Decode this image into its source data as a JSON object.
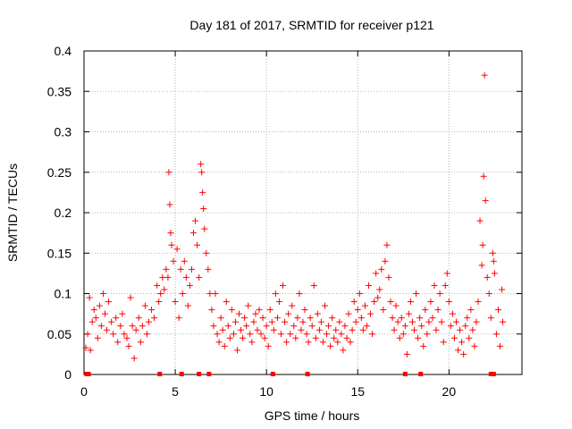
{
  "chart_data": {
    "type": "scatter",
    "title": "Day 181 of 2017, SRMTID for receiver p121",
    "xlabel": "GPS time / hours",
    "ylabel": "SRMTID / TECUs",
    "xlim": [
      0,
      24
    ],
    "ylim": [
      0,
      0.4
    ],
    "xticks": [
      0,
      5,
      10,
      15,
      20
    ],
    "xtick_labels": [
      "0",
      "5",
      "10",
      "15",
      "20"
    ],
    "yticks": [
      0,
      0.05,
      0.1,
      0.15,
      0.2,
      0.25,
      0.3,
      0.35,
      0.4
    ],
    "ytick_labels": [
      "0",
      "0.05",
      "0.1",
      "0.15",
      "0.2",
      "0.25",
      "0.3",
      "0.35",
      "0.4"
    ],
    "grid": true,
    "marker": "+",
    "color": "#ff0000",
    "series": [
      {
        "name": "SRMTID",
        "points": [
          [
            0.1,
            0.033
          ],
          [
            0.2,
            0.05
          ],
          [
            0.3,
            0.095
          ],
          [
            0.35,
            0.03
          ],
          [
            0.45,
            0.065
          ],
          [
            0.55,
            0.08
          ],
          [
            0.65,
            0.07
          ],
          [
            0.75,
            0.045
          ],
          [
            0.85,
            0.085
          ],
          [
            0.95,
            0.06
          ],
          [
            1.05,
            0.1
          ],
          [
            1.15,
            0.075
          ],
          [
            1.25,
            0.055
          ],
          [
            1.35,
            0.09
          ],
          [
            1.5,
            0.065
          ],
          [
            1.6,
            0.05
          ],
          [
            1.75,
            0.07
          ],
          [
            1.85,
            0.04
          ],
          [
            2.0,
            0.06
          ],
          [
            2.1,
            0.075
          ],
          [
            2.2,
            0.05
          ],
          [
            2.35,
            0.045
          ],
          [
            2.45,
            0.035
          ],
          [
            2.55,
            0.095
          ],
          [
            2.65,
            0.06
          ],
          [
            2.75,
            0.02
          ],
          [
            2.85,
            0.055
          ],
          [
            3.0,
            0.07
          ],
          [
            3.1,
            0.04
          ],
          [
            3.2,
            0.06
          ],
          [
            3.35,
            0.085
          ],
          [
            3.45,
            0.05
          ],
          [
            3.55,
            0.065
          ],
          [
            3.7,
            0.08
          ],
          [
            3.85,
            0.07
          ],
          [
            4.0,
            0.11
          ],
          [
            4.1,
            0.09
          ],
          [
            4.2,
            0.1
          ],
          [
            4.3,
            0.12
          ],
          [
            4.4,
            0.105
          ],
          [
            4.5,
            0.13
          ],
          [
            4.6,
            0.12
          ],
          [
            4.65,
            0.25
          ],
          [
            4.7,
            0.21
          ],
          [
            4.75,
            0.175
          ],
          [
            4.8,
            0.16
          ],
          [
            4.9,
            0.14
          ],
          [
            5.0,
            0.09
          ],
          [
            5.1,
            0.155
          ],
          [
            5.2,
            0.07
          ],
          [
            5.3,
            0.13
          ],
          [
            5.4,
            0.1
          ],
          [
            5.5,
            0.14
          ],
          [
            5.6,
            0.12
          ],
          [
            5.7,
            0.085
          ],
          [
            5.8,
            0.11
          ],
          [
            5.9,
            0.13
          ],
          [
            6.0,
            0.175
          ],
          [
            6.1,
            0.19
          ],
          [
            6.2,
            0.16
          ],
          [
            6.3,
            0.12
          ],
          [
            6.4,
            0.26
          ],
          [
            6.45,
            0.25
          ],
          [
            6.5,
            0.225
          ],
          [
            6.55,
            0.205
          ],
          [
            6.6,
            0.18
          ],
          [
            6.7,
            0.15
          ],
          [
            6.8,
            0.13
          ],
          [
            6.9,
            0.1
          ],
          [
            7.0,
            0.08
          ],
          [
            7.1,
            0.06
          ],
          [
            7.2,
            0.1
          ],
          [
            7.3,
            0.05
          ],
          [
            7.4,
            0.04
          ],
          [
            7.5,
            0.07
          ],
          [
            7.6,
            0.055
          ],
          [
            7.7,
            0.035
          ],
          [
            7.8,
            0.09
          ],
          [
            7.9,
            0.06
          ],
          [
            8.0,
            0.045
          ],
          [
            8.1,
            0.08
          ],
          [
            8.2,
            0.05
          ],
          [
            8.3,
            0.065
          ],
          [
            8.4,
            0.03
          ],
          [
            8.5,
            0.075
          ],
          [
            8.6,
            0.055
          ],
          [
            8.7,
            0.045
          ],
          [
            8.8,
            0.07
          ],
          [
            8.9,
            0.06
          ],
          [
            9.0,
            0.085
          ],
          [
            9.1,
            0.05
          ],
          [
            9.2,
            0.04
          ],
          [
            9.3,
            0.065
          ],
          [
            9.4,
            0.075
          ],
          [
            9.5,
            0.055
          ],
          [
            9.6,
            0.08
          ],
          [
            9.7,
            0.05
          ],
          [
            9.8,
            0.07
          ],
          [
            9.9,
            0.045
          ],
          [
            10.0,
            0.06
          ],
          [
            10.1,
            0.035
          ],
          [
            10.2,
            0.08
          ],
          [
            10.3,
            0.065
          ],
          [
            10.4,
            0.055
          ],
          [
            10.5,
            0.1
          ],
          [
            10.6,
            0.07
          ],
          [
            10.7,
            0.09
          ],
          [
            10.8,
            0.05
          ],
          [
            10.9,
            0.11
          ],
          [
            11.0,
            0.065
          ],
          [
            11.1,
            0.04
          ],
          [
            11.2,
            0.075
          ],
          [
            11.3,
            0.05
          ],
          [
            11.4,
            0.085
          ],
          [
            11.5,
            0.06
          ],
          [
            11.6,
            0.045
          ],
          [
            11.7,
            0.07
          ],
          [
            11.8,
            0.1
          ],
          [
            11.9,
            0.055
          ],
          [
            12.0,
            0.065
          ],
          [
            12.1,
            0.08
          ],
          [
            12.2,
            0.05
          ],
          [
            12.3,
            0.04
          ],
          [
            12.4,
            0.07
          ],
          [
            12.5,
            0.06
          ],
          [
            12.6,
            0.11
          ],
          [
            12.7,
            0.045
          ],
          [
            12.8,
            0.075
          ],
          [
            12.9,
            0.055
          ],
          [
            13.0,
            0.065
          ],
          [
            13.1,
            0.04
          ],
          [
            13.2,
            0.085
          ],
          [
            13.3,
            0.05
          ],
          [
            13.4,
            0.06
          ],
          [
            13.5,
            0.035
          ],
          [
            13.6,
            0.07
          ],
          [
            13.7,
            0.045
          ],
          [
            13.8,
            0.055
          ],
          [
            13.9,
            0.04
          ],
          [
            14.0,
            0.065
          ],
          [
            14.1,
            0.05
          ],
          [
            14.2,
            0.03
          ],
          [
            14.3,
            0.06
          ],
          [
            14.4,
            0.045
          ],
          [
            14.5,
            0.075
          ],
          [
            14.6,
            0.04
          ],
          [
            14.7,
            0.055
          ],
          [
            14.8,
            0.09
          ],
          [
            14.9,
            0.065
          ],
          [
            15.0,
            0.08
          ],
          [
            15.1,
            0.1
          ],
          [
            15.2,
            0.07
          ],
          [
            15.3,
            0.055
          ],
          [
            15.4,
            0.085
          ],
          [
            15.5,
            0.06
          ],
          [
            15.6,
            0.11
          ],
          [
            15.7,
            0.075
          ],
          [
            15.8,
            0.05
          ],
          [
            15.9,
            0.09
          ],
          [
            16.0,
            0.125
          ],
          [
            16.1,
            0.095
          ],
          [
            16.2,
            0.105
          ],
          [
            16.3,
            0.13
          ],
          [
            16.4,
            0.08
          ],
          [
            16.5,
            0.14
          ],
          [
            16.6,
            0.16
          ],
          [
            16.7,
            0.12
          ],
          [
            16.8,
            0.09
          ],
          [
            16.9,
            0.07
          ],
          [
            17.0,
            0.055
          ],
          [
            17.1,
            0.085
          ],
          [
            17.2,
            0.065
          ],
          [
            17.3,
            0.045
          ],
          [
            17.4,
            0.07
          ],
          [
            17.5,
            0.05
          ],
          [
            17.6,
            0.06
          ],
          [
            17.7,
            0.025
          ],
          [
            17.8,
            0.075
          ],
          [
            17.9,
            0.09
          ],
          [
            18.0,
            0.065
          ],
          [
            18.1,
            0.055
          ],
          [
            18.2,
            0.1
          ],
          [
            18.3,
            0.045
          ],
          [
            18.4,
            0.07
          ],
          [
            18.5,
            0.06
          ],
          [
            18.6,
            0.035
          ],
          [
            18.7,
            0.08
          ],
          [
            18.8,
            0.05
          ],
          [
            18.9,
            0.065
          ],
          [
            19.0,
            0.09
          ],
          [
            19.1,
            0.07
          ],
          [
            19.2,
            0.11
          ],
          [
            19.3,
            0.055
          ],
          [
            19.4,
            0.08
          ],
          [
            19.5,
            0.1
          ],
          [
            19.6,
            0.065
          ],
          [
            19.7,
            0.04
          ],
          [
            19.8,
            0.11
          ],
          [
            19.9,
            0.125
          ],
          [
            20.0,
            0.09
          ],
          [
            20.1,
            0.06
          ],
          [
            20.2,
            0.075
          ],
          [
            20.3,
            0.045
          ],
          [
            20.4,
            0.065
          ],
          [
            20.5,
            0.03
          ],
          [
            20.6,
            0.055
          ],
          [
            20.7,
            0.04
          ],
          [
            20.8,
            0.025
          ],
          [
            20.9,
            0.06
          ],
          [
            21.0,
            0.07
          ],
          [
            21.1,
            0.045
          ],
          [
            21.2,
            0.08
          ],
          [
            21.3,
            0.055
          ],
          [
            21.4,
            0.035
          ],
          [
            21.5,
            0.065
          ],
          [
            21.6,
            0.09
          ],
          [
            21.7,
            0.19
          ],
          [
            21.8,
            0.135
          ],
          [
            21.85,
            0.16
          ],
          [
            21.9,
            0.245
          ],
          [
            21.95,
            0.37
          ],
          [
            22.0,
            0.215
          ],
          [
            22.1,
            0.12
          ],
          [
            22.2,
            0.1
          ],
          [
            22.3,
            0.07
          ],
          [
            22.4,
            0.15
          ],
          [
            22.45,
            0.14
          ],
          [
            22.5,
            0.125
          ],
          [
            22.6,
            0.05
          ],
          [
            22.7,
            0.08
          ],
          [
            22.8,
            0.035
          ],
          [
            22.9,
            0.105
          ],
          [
            22.95,
            0.065
          ]
        ]
      }
    ],
    "baseline_markers_x": [
      0.15,
      0.25,
      4.15,
      5.35,
      6.3,
      6.85,
      10.35,
      12.25,
      17.6,
      18.45,
      22.3,
      22.45
    ]
  }
}
